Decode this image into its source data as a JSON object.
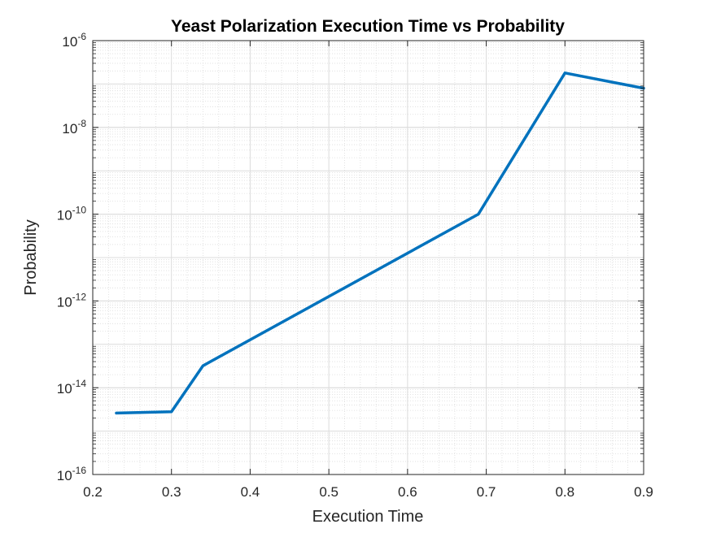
{
  "chart_data": {
    "type": "line",
    "title": "Yeast Polarization Execution Time vs Probability",
    "xlabel": "Execution Time",
    "ylabel": "Probability",
    "xlim": [
      0.2,
      0.9
    ],
    "ylim": [
      1e-16,
      1e-06
    ],
    "yscale": "log",
    "grid": true,
    "minor_grid": true,
    "x_ticks": [
      "0.2",
      "0.3",
      "0.4",
      "0.5",
      "0.6",
      "0.7",
      "0.8",
      "0.9"
    ],
    "y_ticks": [
      {
        "base": "10",
        "exp": "-16"
      },
      {
        "base": "10",
        "exp": "-14"
      },
      {
        "base": "10",
        "exp": "-12"
      },
      {
        "base": "10",
        "exp": "-10"
      },
      {
        "base": "10",
        "exp": "-8"
      },
      {
        "base": "10",
        "exp": "-6"
      }
    ],
    "series": [
      {
        "color": "#0072BD",
        "x": [
          0.23,
          0.3,
          0.34,
          0.69,
          0.8,
          0.9
        ],
        "y": [
          2.6e-15,
          2.8e-15,
          3.2e-14,
          1e-10,
          1.8e-07,
          8e-08
        ]
      }
    ]
  }
}
